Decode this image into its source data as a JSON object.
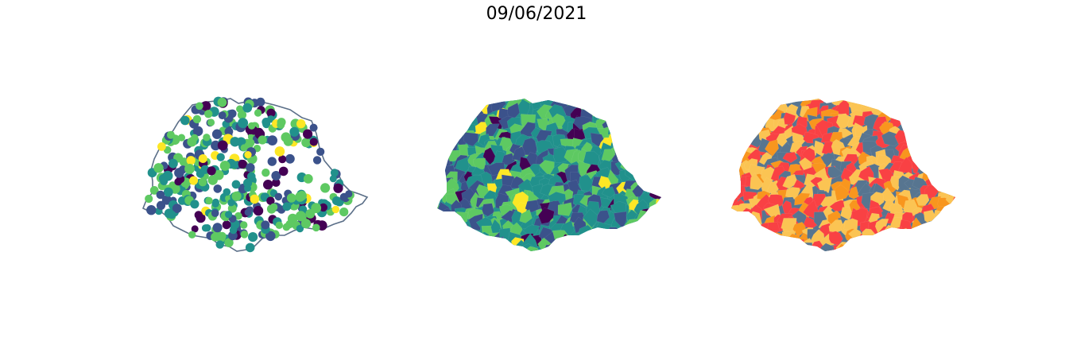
{
  "title": "09/06/2021",
  "colors": {
    "outline": "#5b6f88",
    "viridis": [
      "#440154",
      "#3b528b",
      "#21918c",
      "#5ec962",
      "#fde725"
    ],
    "categories": [
      "#fbc453",
      "#f94144",
      "#f8961e",
      "#577590"
    ]
  },
  "panels": [
    {
      "name": "map-points",
      "type": "scatter-on-outline"
    },
    {
      "name": "map-choropleth",
      "type": "choropleth-viridis"
    },
    {
      "name": "map-categories",
      "type": "choropleth-categorical"
    }
  ]
}
